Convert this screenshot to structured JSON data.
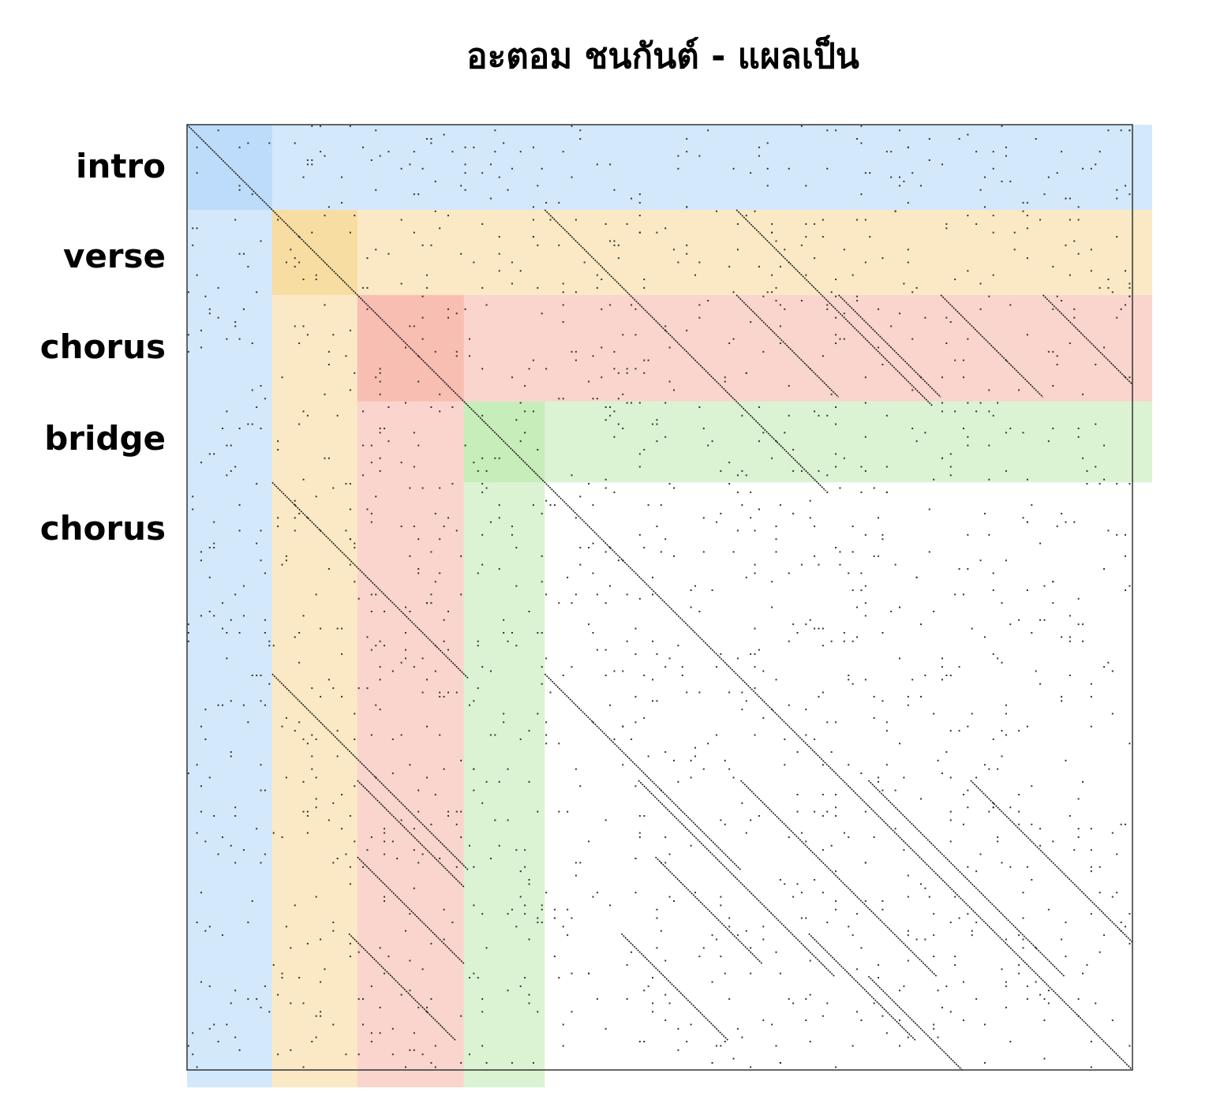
{
  "chart_data": {
    "type": "heatmap",
    "title": "อะตอม ชนกันต์ - แผลเป็น",
    "xlabel": "",
    "ylabel": "",
    "grid": false,
    "section_labels": [
      "intro",
      "verse",
      "chorus",
      "bridge",
      "chorus"
    ],
    "segments": [
      {
        "label": "intro",
        "start": 0,
        "end": 20,
        "color": "#a9d1fa"
      },
      {
        "label": "verse",
        "start": 20,
        "end": 40,
        "color": "#f6d389"
      },
      {
        "label": "chorus",
        "start": 40,
        "end": 65,
        "color": "#f5ab9c"
      },
      {
        "label": "bridge",
        "start": 65,
        "end": 84,
        "color": "#b7e7a5"
      }
    ],
    "matrix_size": 222,
    "repetition_diagonals": [
      {
        "i0": 0,
        "j0": 0,
        "length": 222
      },
      {
        "i0": 20,
        "j0": 84,
        "length": 66
      },
      {
        "i0": 20,
        "j0": 129,
        "length": 46
      },
      {
        "i0": 40,
        "j0": 129,
        "length": 24
      },
      {
        "i0": 40,
        "j0": 153,
        "length": 24
      },
      {
        "i0": 40,
        "j0": 177,
        "length": 24
      },
      {
        "i0": 40,
        "j0": 201,
        "length": 21
      },
      {
        "i0": 84,
        "j0": 20,
        "length": 46
      },
      {
        "i0": 129,
        "j0": 20,
        "length": 46
      },
      {
        "i0": 129,
        "j0": 84,
        "length": 46
      },
      {
        "i0": 154,
        "j0": 40,
        "length": 25
      },
      {
        "i0": 154,
        "j0": 106,
        "length": 46
      },
      {
        "i0": 154,
        "j0": 130,
        "length": 46
      },
      {
        "i0": 154,
        "j0": 160,
        "length": 46
      },
      {
        "i0": 154,
        "j0": 184,
        "length": 46
      },
      {
        "i0": 172,
        "j0": 40,
        "length": 25
      },
      {
        "i0": 172,
        "j0": 110,
        "length": 25
      },
      {
        "i0": 190,
        "j0": 38,
        "length": 25
      },
      {
        "i0": 190,
        "j0": 102,
        "length": 25
      },
      {
        "i0": 190,
        "j0": 146,
        "length": 25
      },
      {
        "i0": 200,
        "j0": 160,
        "length": 24
      }
    ],
    "point_density": 0.035,
    "random_seed": 7
  }
}
